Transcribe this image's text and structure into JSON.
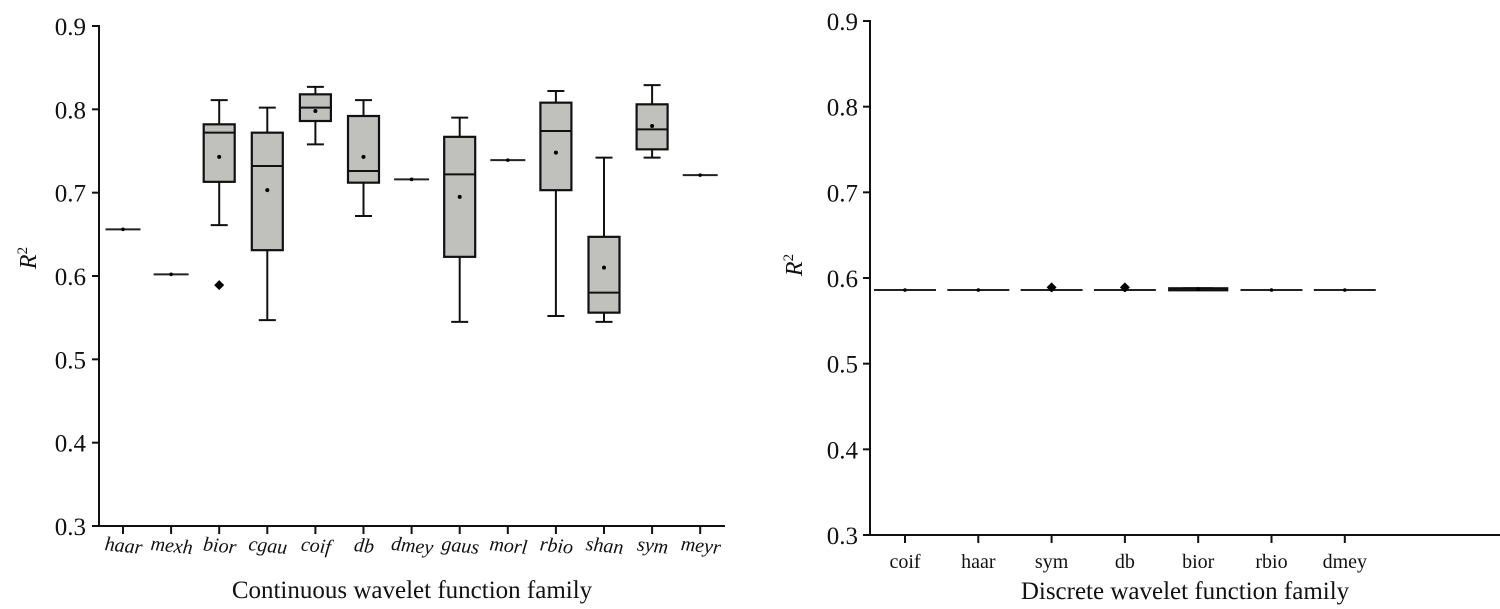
{
  "colors": {
    "box_fill": "#c0c0bc",
    "stroke": "#111111",
    "background": "#ffffff"
  },
  "chart_data": [
    {
      "type": "boxplot",
      "title": "",
      "xlabel": "Continuous wavelet function family",
      "ylabel": "R",
      "ylabel_superscript": "2",
      "ylim": [
        0.3,
        0.9
      ],
      "yticks": [
        "0.3",
        "0.4",
        "0.5",
        "0.6",
        "0.7",
        "0.8",
        "0.9"
      ],
      "ytick_values": [
        0.3,
        0.4,
        0.5,
        0.6,
        0.7,
        0.8,
        0.9
      ],
      "grid": false,
      "categories": [
        "haar",
        "mexh",
        "bior",
        "cgau",
        "coif",
        "db",
        "dmey",
        "gaus",
        "morl",
        "rbio",
        "shan",
        "sym",
        "meyr"
      ],
      "boxes": [
        {
          "name": "haar",
          "whislo": 0.656,
          "q1": 0.656,
          "med": 0.656,
          "q3": 0.656,
          "whishi": 0.656,
          "mean": 0.656,
          "outliers": []
        },
        {
          "name": "mexh",
          "whislo": 0.602,
          "q1": 0.602,
          "med": 0.602,
          "q3": 0.602,
          "whishi": 0.602,
          "mean": 0.602,
          "outliers": []
        },
        {
          "name": "bior",
          "whislo": 0.661,
          "q1": 0.713,
          "med": 0.772,
          "q3": 0.782,
          "whishi": 0.811,
          "mean": 0.743,
          "outliers": [
            0.589
          ]
        },
        {
          "name": "cgau",
          "whislo": 0.547,
          "q1": 0.631,
          "med": 0.732,
          "q3": 0.772,
          "whishi": 0.802,
          "mean": 0.703,
          "outliers": []
        },
        {
          "name": "coif",
          "whislo": 0.758,
          "q1": 0.786,
          "med": 0.802,
          "q3": 0.818,
          "whishi": 0.827,
          "mean": 0.798,
          "outliers": []
        },
        {
          "name": "db",
          "whislo": 0.672,
          "q1": 0.712,
          "med": 0.726,
          "q3": 0.792,
          "whishi": 0.811,
          "mean": 0.743,
          "outliers": []
        },
        {
          "name": "dmey",
          "whislo": 0.716,
          "q1": 0.716,
          "med": 0.716,
          "q3": 0.716,
          "whishi": 0.716,
          "mean": 0.716,
          "outliers": []
        },
        {
          "name": "gaus",
          "whislo": 0.545,
          "q1": 0.623,
          "med": 0.722,
          "q3": 0.767,
          "whishi": 0.79,
          "mean": 0.695,
          "outliers": []
        },
        {
          "name": "morl",
          "whislo": 0.739,
          "q1": 0.739,
          "med": 0.739,
          "q3": 0.739,
          "whishi": 0.739,
          "mean": 0.739,
          "outliers": []
        },
        {
          "name": "rbio",
          "whislo": 0.552,
          "q1": 0.703,
          "med": 0.774,
          "q3": 0.808,
          "whishi": 0.822,
          "mean": 0.748,
          "outliers": []
        },
        {
          "name": "shan",
          "whislo": 0.545,
          "q1": 0.556,
          "med": 0.58,
          "q3": 0.647,
          "whishi": 0.742,
          "mean": 0.61,
          "outliers": []
        },
        {
          "name": "sym",
          "whislo": 0.742,
          "q1": 0.752,
          "med": 0.776,
          "q3": 0.806,
          "whishi": 0.829,
          "mean": 0.78,
          "outliers": []
        },
        {
          "name": "meyr",
          "whislo": 0.721,
          "q1": 0.721,
          "med": 0.721,
          "q3": 0.721,
          "whishi": 0.721,
          "mean": 0.721,
          "outliers": []
        }
      ]
    },
    {
      "type": "boxplot",
      "title": "",
      "xlabel": "Discrete wavelet function family",
      "ylabel": "R",
      "ylabel_superscript": "2",
      "ylim": [
        0.3,
        0.9
      ],
      "yticks": [
        "0.3",
        "0.4",
        "0.5",
        "0.6",
        "0.7",
        "0.8",
        "0.9"
      ],
      "ytick_values": [
        0.3,
        0.4,
        0.5,
        0.6,
        0.7,
        0.8,
        0.9
      ],
      "grid": false,
      "categories": [
        "coif",
        "haar",
        "sym",
        "db",
        "bior",
        "rbio",
        "dmey"
      ],
      "boxes": [
        {
          "name": "coif",
          "whislo": 0.586,
          "q1": 0.586,
          "med": 0.586,
          "q3": 0.586,
          "whishi": 0.586,
          "mean": 0.586,
          "outliers": []
        },
        {
          "name": "haar",
          "whislo": 0.586,
          "q1": 0.586,
          "med": 0.586,
          "q3": 0.586,
          "whishi": 0.586,
          "mean": 0.586,
          "outliers": []
        },
        {
          "name": "sym",
          "whislo": 0.586,
          "q1": 0.586,
          "med": 0.586,
          "q3": 0.586,
          "whishi": 0.586,
          "mean": 0.586,
          "outliers": [
            0.589
          ]
        },
        {
          "name": "db",
          "whislo": 0.586,
          "q1": 0.586,
          "med": 0.586,
          "q3": 0.586,
          "whishi": 0.586,
          "mean": 0.586,
          "outliers": [
            0.589
          ]
        },
        {
          "name": "bior",
          "whislo": 0.586,
          "q1": 0.586,
          "med": 0.587,
          "q3": 0.588,
          "whishi": 0.588,
          "mean": 0.587,
          "outliers": []
        },
        {
          "name": "rbio",
          "whislo": 0.586,
          "q1": 0.586,
          "med": 0.586,
          "q3": 0.586,
          "whishi": 0.586,
          "mean": 0.586,
          "outliers": []
        },
        {
          "name": "dmey",
          "whislo": 0.586,
          "q1": 0.586,
          "med": 0.586,
          "q3": 0.586,
          "whishi": 0.586,
          "mean": 0.586,
          "outliers": []
        }
      ]
    }
  ]
}
